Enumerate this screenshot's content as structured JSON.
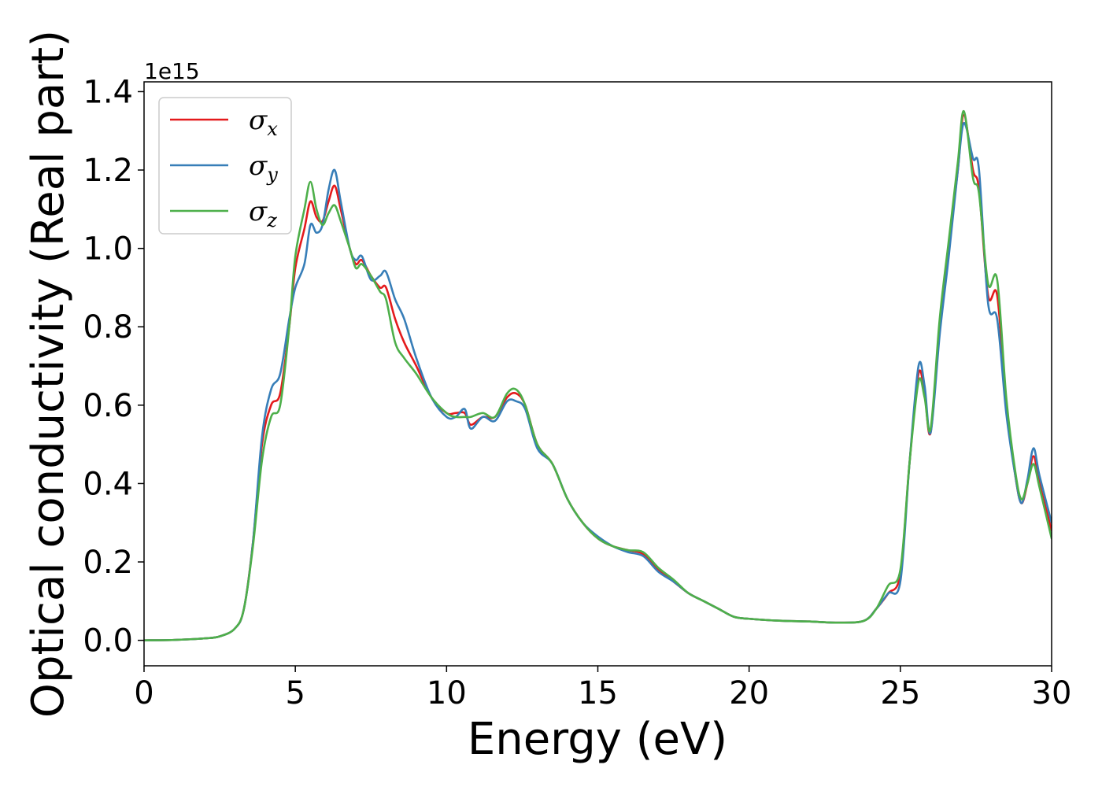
{
  "chart_data": {
    "type": "line",
    "title": "",
    "xlabel": "Energy (eV)",
    "ylabel": "Optical conductivity (Real part)",
    "y_offset_text": "1e15",
    "xlim": [
      0,
      30
    ],
    "ylim": [
      -0.065,
      1.425
    ],
    "xticks": [
      0,
      5,
      10,
      15,
      20,
      25,
      30
    ],
    "xtick_labels": [
      "0",
      "5",
      "10",
      "15",
      "20",
      "25",
      "30"
    ],
    "yticks": [
      0.0,
      0.2,
      0.4,
      0.6,
      0.8,
      1.0,
      1.2,
      1.4
    ],
    "ytick_labels": [
      "0.0",
      "0.2",
      "0.4",
      "0.6",
      "0.8",
      "1.0",
      "1.2",
      "1.4"
    ],
    "grid": false,
    "legend_position": "top-left",
    "series": [
      {
        "name_base": "σ",
        "name_sub": "x",
        "color": "#e41a1c",
        "points": [
          [
            0,
            0.0
          ],
          [
            1,
            0.001
          ],
          [
            2,
            0.005
          ],
          [
            2.5,
            0.01
          ],
          [
            3,
            0.03
          ],
          [
            3.3,
            0.08
          ],
          [
            3.6,
            0.25
          ],
          [
            3.9,
            0.5
          ],
          [
            4.2,
            0.6
          ],
          [
            4.5,
            0.63
          ],
          [
            4.8,
            0.8
          ],
          [
            5.0,
            0.95
          ],
          [
            5.3,
            1.05
          ],
          [
            5.5,
            1.12
          ],
          [
            5.7,
            1.08
          ],
          [
            5.9,
            1.07
          ],
          [
            6.1,
            1.12
          ],
          [
            6.3,
            1.16
          ],
          [
            6.5,
            1.1
          ],
          [
            6.8,
            1.0
          ],
          [
            7.0,
            0.96
          ],
          [
            7.2,
            0.97
          ],
          [
            7.5,
            0.93
          ],
          [
            7.8,
            0.9
          ],
          [
            8.0,
            0.9
          ],
          [
            8.3,
            0.82
          ],
          [
            8.6,
            0.76
          ],
          [
            9.0,
            0.7
          ],
          [
            9.5,
            0.62
          ],
          [
            10.0,
            0.58
          ],
          [
            10.3,
            0.58
          ],
          [
            10.6,
            0.58
          ],
          [
            10.8,
            0.55
          ],
          [
            11.2,
            0.57
          ],
          [
            11.6,
            0.57
          ],
          [
            12.0,
            0.62
          ],
          [
            12.3,
            0.63
          ],
          [
            12.6,
            0.6
          ],
          [
            13.0,
            0.5
          ],
          [
            13.5,
            0.45
          ],
          [
            14.0,
            0.36
          ],
          [
            14.5,
            0.3
          ],
          [
            15.0,
            0.26
          ],
          [
            15.5,
            0.24
          ],
          [
            16.0,
            0.23
          ],
          [
            16.5,
            0.22
          ],
          [
            17.0,
            0.18
          ],
          [
            17.5,
            0.15
          ],
          [
            18.0,
            0.12
          ],
          [
            18.5,
            0.1
          ],
          [
            19.0,
            0.08
          ],
          [
            19.5,
            0.06
          ],
          [
            20.0,
            0.055
          ],
          [
            21.0,
            0.05
          ],
          [
            22.0,
            0.048
          ],
          [
            23.0,
            0.045
          ],
          [
            23.8,
            0.05
          ],
          [
            24.2,
            0.08
          ],
          [
            24.6,
            0.12
          ],
          [
            25.0,
            0.17
          ],
          [
            25.3,
            0.45
          ],
          [
            25.6,
            0.68
          ],
          [
            25.8,
            0.63
          ],
          [
            26.0,
            0.53
          ],
          [
            26.3,
            0.8
          ],
          [
            26.6,
            1.0
          ],
          [
            26.9,
            1.2
          ],
          [
            27.1,
            1.34
          ],
          [
            27.4,
            1.2
          ],
          [
            27.6,
            1.15
          ],
          [
            27.9,
            0.88
          ],
          [
            28.2,
            0.88
          ],
          [
            28.5,
            0.6
          ],
          [
            28.8,
            0.42
          ],
          [
            29.0,
            0.35
          ],
          [
            29.2,
            0.4
          ],
          [
            29.4,
            0.47
          ],
          [
            29.6,
            0.4
          ],
          [
            30.0,
            0.28
          ]
        ]
      },
      {
        "name_base": "σ",
        "name_sub": "y",
        "color": "#377eb8",
        "points": [
          [
            0,
            0.0
          ],
          [
            1,
            0.001
          ],
          [
            2,
            0.005
          ],
          [
            2.5,
            0.01
          ],
          [
            3,
            0.03
          ],
          [
            3.3,
            0.08
          ],
          [
            3.6,
            0.25
          ],
          [
            3.9,
            0.52
          ],
          [
            4.2,
            0.64
          ],
          [
            4.5,
            0.68
          ],
          [
            4.8,
            0.82
          ],
          [
            5.0,
            0.9
          ],
          [
            5.3,
            0.96
          ],
          [
            5.5,
            1.06
          ],
          [
            5.7,
            1.04
          ],
          [
            5.9,
            1.06
          ],
          [
            6.1,
            1.15
          ],
          [
            6.3,
            1.2
          ],
          [
            6.5,
            1.12
          ],
          [
            6.8,
            1.0
          ],
          [
            7.0,
            0.97
          ],
          [
            7.2,
            0.98
          ],
          [
            7.5,
            0.92
          ],
          [
            7.8,
            0.93
          ],
          [
            8.0,
            0.94
          ],
          [
            8.3,
            0.87
          ],
          [
            8.6,
            0.82
          ],
          [
            9.0,
            0.72
          ],
          [
            9.5,
            0.62
          ],
          [
            10.0,
            0.57
          ],
          [
            10.3,
            0.57
          ],
          [
            10.6,
            0.59
          ],
          [
            10.8,
            0.54
          ],
          [
            11.2,
            0.57
          ],
          [
            11.6,
            0.56
          ],
          [
            12.0,
            0.61
          ],
          [
            12.3,
            0.61
          ],
          [
            12.6,
            0.59
          ],
          [
            13.0,
            0.49
          ],
          [
            13.5,
            0.45
          ],
          [
            14.0,
            0.36
          ],
          [
            14.5,
            0.3
          ],
          [
            15.0,
            0.265
          ],
          [
            15.5,
            0.24
          ],
          [
            16.0,
            0.225
          ],
          [
            16.5,
            0.215
          ],
          [
            17.0,
            0.175
          ],
          [
            17.5,
            0.15
          ],
          [
            18.0,
            0.12
          ],
          [
            18.5,
            0.1
          ],
          [
            19.0,
            0.08
          ],
          [
            19.5,
            0.06
          ],
          [
            20.0,
            0.055
          ],
          [
            21.0,
            0.05
          ],
          [
            22.0,
            0.048
          ],
          [
            23.0,
            0.045
          ],
          [
            23.8,
            0.05
          ],
          [
            24.2,
            0.08
          ],
          [
            24.6,
            0.12
          ],
          [
            25.0,
            0.15
          ],
          [
            25.3,
            0.45
          ],
          [
            25.6,
            0.7
          ],
          [
            25.8,
            0.65
          ],
          [
            26.0,
            0.53
          ],
          [
            26.3,
            0.78
          ],
          [
            26.6,
            0.98
          ],
          [
            26.9,
            1.2
          ],
          [
            27.1,
            1.32
          ],
          [
            27.4,
            1.23
          ],
          [
            27.6,
            1.2
          ],
          [
            27.9,
            0.86
          ],
          [
            28.2,
            0.82
          ],
          [
            28.5,
            0.58
          ],
          [
            28.8,
            0.42
          ],
          [
            29.0,
            0.35
          ],
          [
            29.2,
            0.41
          ],
          [
            29.4,
            0.49
          ],
          [
            29.6,
            0.42
          ],
          [
            30.0,
            0.3
          ]
        ]
      },
      {
        "name_base": "σ",
        "name_sub": "z",
        "color": "#4daf4a",
        "points": [
          [
            0,
            0.0
          ],
          [
            1,
            0.001
          ],
          [
            2,
            0.005
          ],
          [
            2.5,
            0.01
          ],
          [
            3,
            0.03
          ],
          [
            3.3,
            0.08
          ],
          [
            3.6,
            0.24
          ],
          [
            3.9,
            0.46
          ],
          [
            4.2,
            0.57
          ],
          [
            4.5,
            0.6
          ],
          [
            4.8,
            0.8
          ],
          [
            5.0,
            0.98
          ],
          [
            5.3,
            1.1
          ],
          [
            5.5,
            1.17
          ],
          [
            5.7,
            1.1
          ],
          [
            5.9,
            1.06
          ],
          [
            6.1,
            1.09
          ],
          [
            6.3,
            1.11
          ],
          [
            6.5,
            1.07
          ],
          [
            6.8,
            1.0
          ],
          [
            7.0,
            0.95
          ],
          [
            7.2,
            0.96
          ],
          [
            7.5,
            0.93
          ],
          [
            7.8,
            0.89
          ],
          [
            8.0,
            0.87
          ],
          [
            8.3,
            0.76
          ],
          [
            8.6,
            0.72
          ],
          [
            9.0,
            0.68
          ],
          [
            9.5,
            0.62
          ],
          [
            10.0,
            0.58
          ],
          [
            10.3,
            0.57
          ],
          [
            10.6,
            0.57
          ],
          [
            10.8,
            0.57
          ],
          [
            11.2,
            0.58
          ],
          [
            11.6,
            0.57
          ],
          [
            12.0,
            0.63
          ],
          [
            12.3,
            0.64
          ],
          [
            12.6,
            0.6
          ],
          [
            13.0,
            0.5
          ],
          [
            13.5,
            0.45
          ],
          [
            14.0,
            0.36
          ],
          [
            14.5,
            0.3
          ],
          [
            15.0,
            0.26
          ],
          [
            15.5,
            0.24
          ],
          [
            16.0,
            0.23
          ],
          [
            16.5,
            0.225
          ],
          [
            17.0,
            0.185
          ],
          [
            17.5,
            0.155
          ],
          [
            18.0,
            0.12
          ],
          [
            18.5,
            0.1
          ],
          [
            19.0,
            0.08
          ],
          [
            19.5,
            0.06
          ],
          [
            20.0,
            0.055
          ],
          [
            21.0,
            0.05
          ],
          [
            22.0,
            0.048
          ],
          [
            23.0,
            0.045
          ],
          [
            23.8,
            0.05
          ],
          [
            24.2,
            0.08
          ],
          [
            24.6,
            0.14
          ],
          [
            25.0,
            0.18
          ],
          [
            25.3,
            0.45
          ],
          [
            25.6,
            0.66
          ],
          [
            25.8,
            0.62
          ],
          [
            26.0,
            0.54
          ],
          [
            26.3,
            0.82
          ],
          [
            26.6,
            1.02
          ],
          [
            26.9,
            1.22
          ],
          [
            27.1,
            1.35
          ],
          [
            27.4,
            1.18
          ],
          [
            27.6,
            1.14
          ],
          [
            27.9,
            0.91
          ],
          [
            28.2,
            0.92
          ],
          [
            28.5,
            0.62
          ],
          [
            28.8,
            0.43
          ],
          [
            29.0,
            0.36
          ],
          [
            29.2,
            0.4
          ],
          [
            29.4,
            0.45
          ],
          [
            29.6,
            0.39
          ],
          [
            30.0,
            0.26
          ]
        ]
      }
    ]
  }
}
